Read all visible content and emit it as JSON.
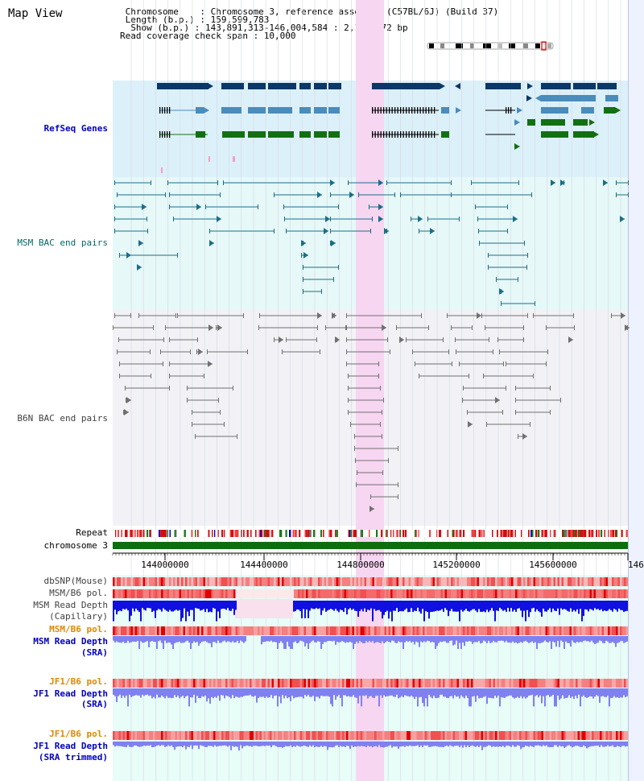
{
  "header": {
    "title": "Map View",
    "info_lines": [
      " Chromosome    : Chromosome 3, reference assembly (C57BL/6J) (Build 37)",
      " Length (b.p.) : 159,599,783",
      "  Show (b.p.) : 143,891,313-146,004,584 : 2,113,272 bp",
      "Read coverage check span : 10,000"
    ]
  },
  "tracks": {
    "refseq": "RefSeq Genes",
    "msm_bac": "MSM BAC end pairs",
    "b6n_bac": "B6N BAC end pairs",
    "repeat": "Repeat",
    "chromosome": "chromosome 3",
    "dbsnp": "dbSNP(Mouse)",
    "msm_b6_pol_1": "MSM/B6 pol.",
    "msm_depth_cap_1": "MSM Read Depth",
    "msm_depth_cap_2": "(Capillary)",
    "msm_b6_pol_2": "MSM/B6 pol.",
    "msm_depth_sra_1": "MSM Read Depth",
    "msm_depth_sra_2": "(SRA)",
    "jf1_b6_pol_1": "JF1/B6 pol.",
    "jf1_depth_sra_1": "JF1 Read Depth",
    "jf1_depth_sra_2": "(SRA)",
    "jf1_b6_pol_2": "JF1/B6 pol.",
    "jf1_depth_trim_1": "JF1 Read Depth",
    "jf1_depth_trim_2": "(SRA trimmed)"
  },
  "axis": {
    "ticks": [
      "144000000",
      "144400000",
      "144800000",
      "145200000",
      "145600000",
      "146"
    ]
  },
  "colors": {
    "refseq_bg": "#dcf0fa",
    "msm_bg": "#e6f8f8",
    "b6n_bg": "#f2f2f6",
    "lower_bg": "#e8fcf8",
    "highlight": "#f7d6f2",
    "gene_dark": "#0a3868",
    "gene_mid": "#4a8cbc",
    "gene_green": "#127012",
    "msm_line": "#1a6e86",
    "b6n_line": "#707070",
    "chrom_bar": "#0e6e0e",
    "depth_blue": "#1010e0",
    "depth_light": "#8080f0"
  }
}
